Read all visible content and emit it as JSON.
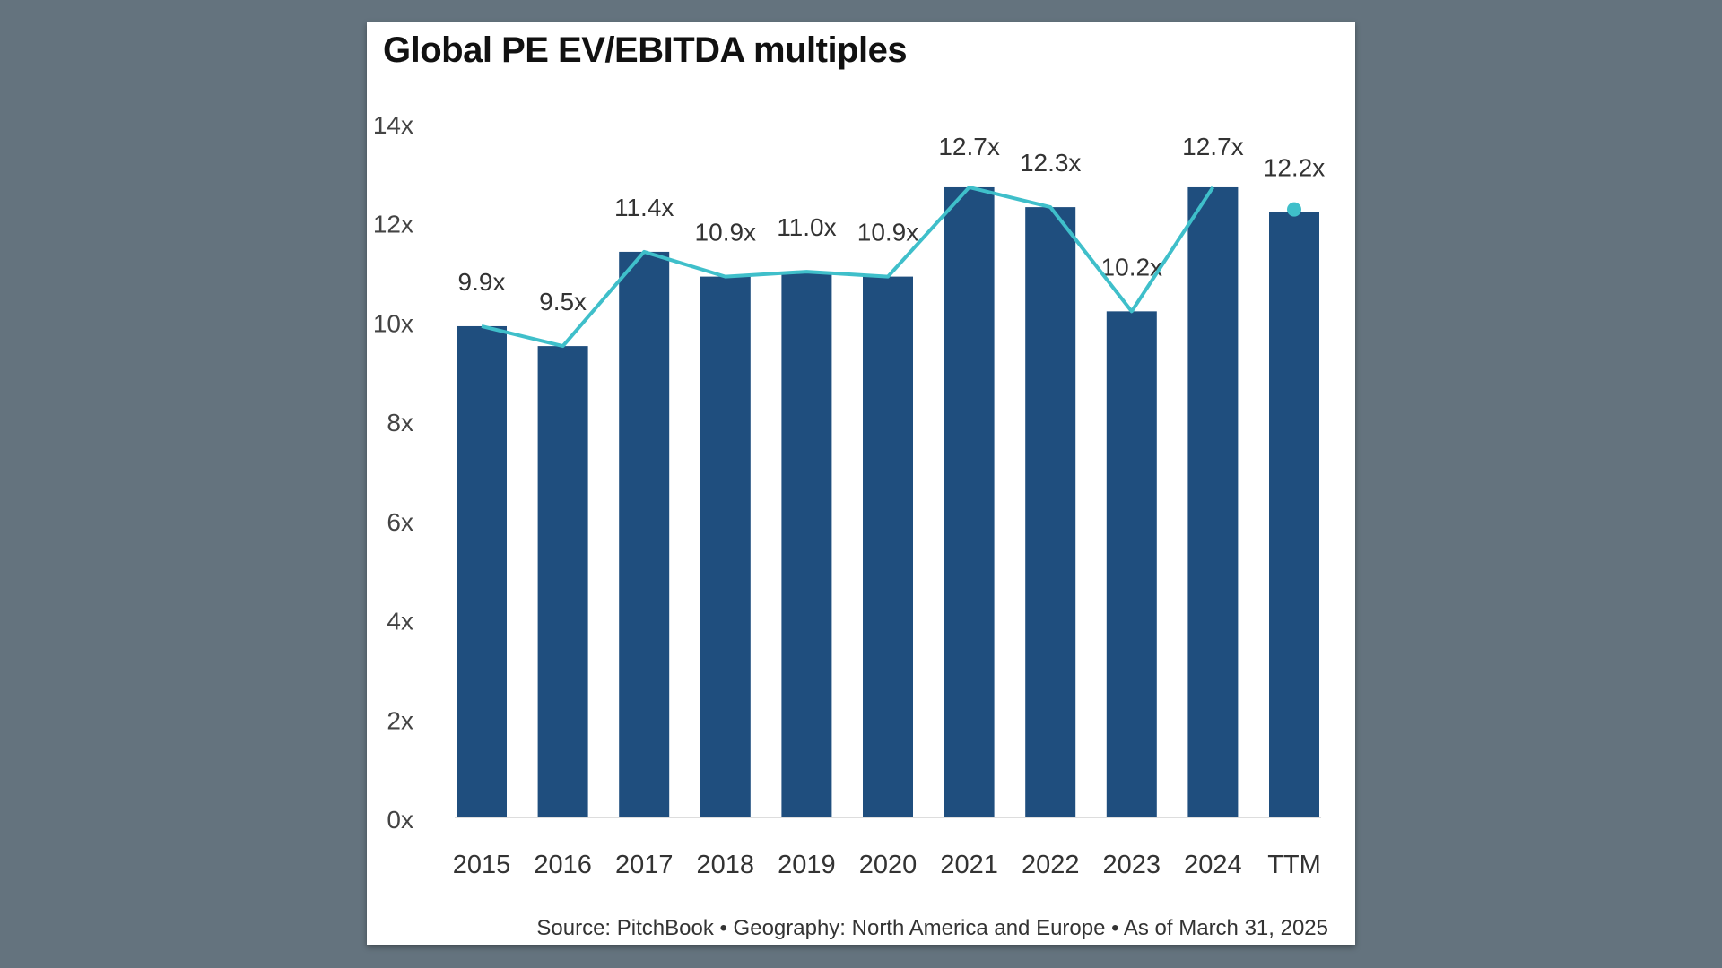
{
  "chart_data": {
    "type": "bar",
    "title": "Global PE EV/EBITDA multiples",
    "categories": [
      "2015",
      "2016",
      "2017",
      "2018",
      "2019",
      "2020",
      "2021",
      "2022",
      "2023",
      "2024",
      "TTM"
    ],
    "values": [
      9.9,
      9.5,
      11.4,
      10.9,
      11.0,
      10.9,
      12.7,
      12.3,
      10.2,
      12.7,
      12.2
    ],
    "data_labels": [
      "9.9x",
      "9.5x",
      "11.4x",
      "10.9x",
      "11.0x",
      "10.9x",
      "12.7x",
      "12.3x",
      "10.2x",
      "12.7x",
      "12.2x"
    ],
    "overlay_line": {
      "type": "line",
      "values": [
        9.9,
        9.5,
        11.4,
        10.9,
        11.0,
        10.9,
        12.7,
        12.3,
        10.2,
        12.7,
        12.2
      ],
      "ttm_marker": "dot"
    },
    "ylim": [
      0,
      14
    ],
    "yticks": [
      0,
      2,
      4,
      6,
      8,
      10,
      12,
      14
    ],
    "ytick_labels": [
      "0x",
      "2x",
      "4x",
      "6x",
      "8x",
      "10x",
      "12x",
      "14x"
    ],
    "xlabel": "",
    "ylabel": "",
    "grid": false,
    "legend": "none",
    "colors": {
      "bar": "#1f4e7e",
      "line": "#3fbfca",
      "background": "#64737e"
    }
  },
  "source_note": "Source: PitchBook  •  Geography: North America and Europe  •  As of March 31, 2025"
}
